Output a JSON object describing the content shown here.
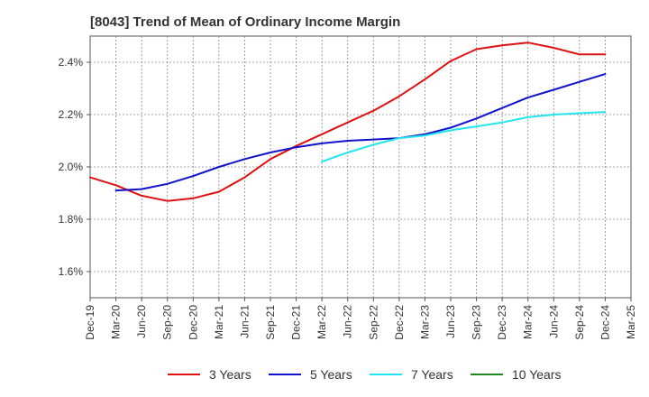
{
  "title": "[8043]  Trend of Mean of Ordinary Income Margin",
  "chart_data": {
    "type": "line",
    "title": "[8043]  Trend of Mean of Ordinary Income Margin",
    "xlabel": "",
    "ylabel": "",
    "categories": [
      "Dec-19",
      "Mar-20",
      "Jun-20",
      "Sep-20",
      "Dec-20",
      "Mar-21",
      "Jun-21",
      "Sep-21",
      "Dec-21",
      "Mar-22",
      "Jun-22",
      "Sep-22",
      "Dec-22",
      "Mar-23",
      "Jun-23",
      "Sep-23",
      "Dec-23",
      "Mar-24",
      "Jun-24",
      "Sep-24",
      "Dec-24",
      "Mar-25"
    ],
    "ylim": [
      1.5,
      2.5
    ],
    "yticks": [
      1.6,
      1.8,
      2.0,
      2.2,
      2.4
    ],
    "ytick_labels": [
      "1.6%",
      "1.8%",
      "2.0%",
      "2.2%",
      "2.4%"
    ],
    "grid": true,
    "legend_position": "bottom",
    "series": [
      {
        "name": "3 Years",
        "color": "#dd1111",
        "values": [
          1.96,
          1.93,
          1.89,
          1.87,
          1.88,
          1.905,
          1.96,
          2.03,
          2.08,
          2.125,
          2.17,
          2.215,
          2.27,
          2.335,
          2.405,
          2.45,
          2.465,
          2.475,
          2.455,
          2.43,
          2.43,
          null
        ]
      },
      {
        "name": "5 Years",
        "color": "#1111cc",
        "values": [
          null,
          1.91,
          1.915,
          1.935,
          1.965,
          2.0,
          2.03,
          2.055,
          2.075,
          2.09,
          2.1,
          2.105,
          2.11,
          2.125,
          2.15,
          2.185,
          2.225,
          2.265,
          2.295,
          2.325,
          2.355,
          null
        ]
      },
      {
        "name": "7 Years",
        "color": "#22e5ee",
        "values": [
          null,
          null,
          null,
          null,
          null,
          null,
          null,
          null,
          null,
          2.02,
          2.055,
          2.085,
          2.11,
          2.12,
          2.14,
          2.155,
          2.17,
          2.19,
          2.2,
          2.205,
          2.21,
          null
        ]
      },
      {
        "name": "10 Years",
        "color": "#228822",
        "values": [
          null,
          null,
          null,
          null,
          null,
          null,
          null,
          null,
          null,
          null,
          null,
          null,
          null,
          null,
          null,
          null,
          null,
          null,
          null,
          null,
          null,
          null
        ]
      }
    ]
  }
}
